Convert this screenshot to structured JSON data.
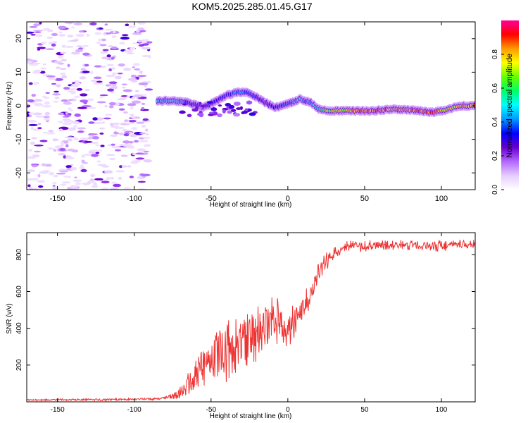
{
  "title": "KOM5.2025.285.01.45.G17",
  "chart_data": [
    {
      "type": "heatmap",
      "name": "spectrogram",
      "xlabel": "Height of straight line (km)",
      "ylabel": "Frequency (Hz)",
      "xlim": [
        -170,
        122
      ],
      "ylim": [
        -25,
        25
      ],
      "x_ticks": [
        -150,
        -100,
        -50,
        0,
        50,
        100
      ],
      "y_ticks": [
        -20,
        -10,
        0,
        10,
        20
      ],
      "colorbar": {
        "label": "Normalized spectral amplitude",
        "range": [
          0,
          1
        ],
        "ticks": [
          0.0,
          0.2,
          0.4,
          0.6,
          0.8
        ]
      },
      "noise_region_x": [
        -170,
        -90
      ],
      "ridge": {
        "x": [
          -85,
          -75,
          -65,
          -55,
          -48,
          -40,
          -33,
          -27,
          -22,
          -15,
          -8,
          0,
          8,
          15,
          20,
          28,
          40,
          55,
          70,
          85,
          95,
          100,
          105,
          112,
          122
        ],
        "freq": [
          1.5,
          1.5,
          1.0,
          -0.5,
          1.0,
          3.0,
          4.0,
          4.0,
          3.0,
          1.0,
          -0.5,
          0.5,
          2.0,
          1.0,
          -1.0,
          -1.5,
          -1.5,
          -1.5,
          -1.0,
          -1.5,
          -2.0,
          -1.5,
          -1.0,
          0.0,
          0.0
        ],
        "amp": [
          0.45,
          0.5,
          0.35,
          0.3,
          0.3,
          0.35,
          0.4,
          0.4,
          0.3,
          0.25,
          0.3,
          0.35,
          0.45,
          0.4,
          0.55,
          0.7,
          0.8,
          0.85,
          0.8,
          0.85,
          0.9,
          0.75,
          0.7,
          0.75,
          0.85
        ]
      }
    },
    {
      "type": "line",
      "name": "snr",
      "xlabel": "Height of straight line (km)",
      "ylabel": "SNR (v/v)",
      "xlim": [
        -170,
        122
      ],
      "ylim": [
        0,
        920
      ],
      "x_ticks": [
        -150,
        -100,
        -50,
        0,
        50,
        100
      ],
      "y_ticks": [
        200,
        400,
        600,
        800
      ],
      "color": "#ee3333",
      "series": [
        {
          "name": "SNR",
          "x": [
            -170,
            -120,
            -95,
            -80,
            -72,
            -65,
            -60,
            -55,
            -50,
            -45,
            -40,
            -35,
            -30,
            -25,
            -20,
            -15,
            -10,
            -5,
            0,
            5,
            10,
            15,
            20,
            25,
            30,
            35,
            40,
            50,
            60,
            70,
            80,
            90,
            100,
            110,
            122
          ],
          "y": [
            10,
            12,
            15,
            20,
            40,
            90,
            150,
            200,
            240,
            260,
            280,
            300,
            330,
            350,
            380,
            410,
            470,
            430,
            380,
            440,
            510,
            580,
            700,
            760,
            810,
            840,
            850,
            845,
            850,
            850,
            855,
            850,
            850,
            855,
            855
          ],
          "amp": [
            4,
            6,
            5,
            8,
            25,
            60,
            80,
            100,
            110,
            120,
            140,
            150,
            150,
            140,
            140,
            130,
            120,
            110,
            90,
            80,
            70,
            60,
            50,
            45,
            40,
            30,
            25,
            25,
            25,
            25,
            25,
            25,
            30,
            20,
            20
          ]
        }
      ]
    }
  ],
  "colors": {
    "colormap": [
      "#ffffff",
      "#e6ccff",
      "#b266ff",
      "#6600cc",
      "#0000ff",
      "#0099ff",
      "#00ffff",
      "#00ff66",
      "#66ff00",
      "#ffff00",
      "#ff9900",
      "#ff0000",
      "#ff0099"
    ],
    "line": "#ee3333"
  }
}
